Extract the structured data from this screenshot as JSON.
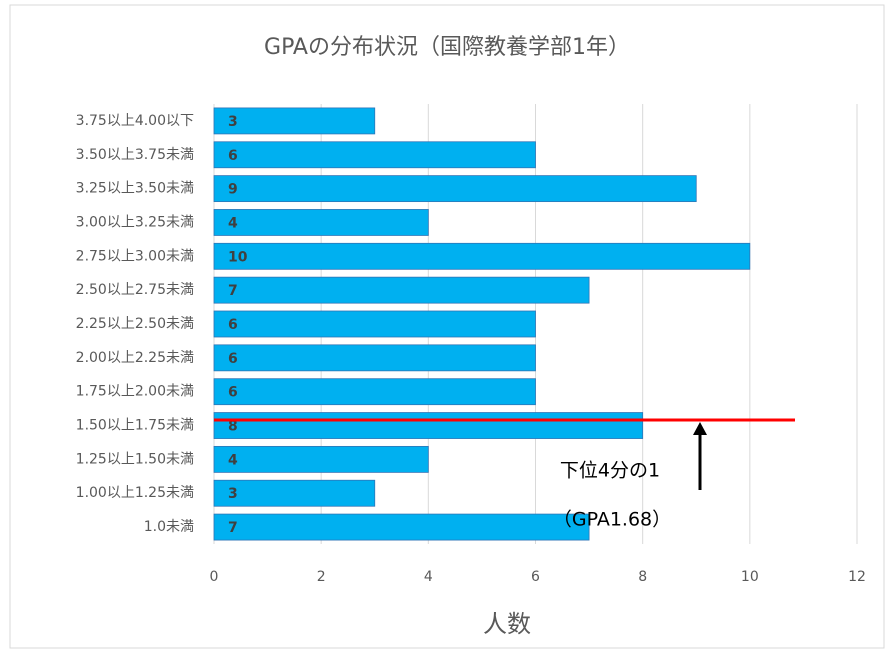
{
  "chart_data": {
    "type": "bar",
    "orientation": "horizontal",
    "title": "GPAの分布状況（国際教養学部1年）",
    "xlabel": "人数",
    "categories": [
      "3.75以上4.00以下",
      "3.50以上3.75未満",
      "3.25以上3.50未満",
      "3.00以上3.25未満",
      "2.75以上3.00未満",
      "2.50以上2.75未満",
      "2.25以上2.50未満",
      "2.00以上2.25未満",
      "1.75以上2.00未満",
      "1.50以上1.75未満",
      "1.25以上1.50未満",
      "1.00以上1.25未満",
      "1.0未満"
    ],
    "values": [
      3,
      6,
      9,
      4,
      10,
      7,
      6,
      6,
      6,
      8,
      4,
      3,
      7
    ],
    "color": "#00b0f0",
    "xlim": [
      0,
      12
    ],
    "xticks": [
      0,
      2,
      4,
      6,
      8,
      10,
      12
    ],
    "grid": true,
    "annotations": [
      "下位4分の1",
      "（GPA1.68）"
    ]
  }
}
